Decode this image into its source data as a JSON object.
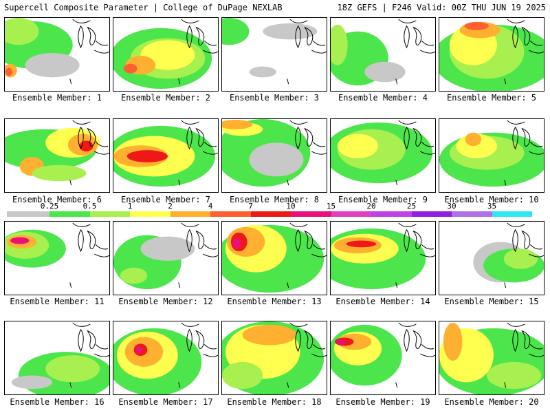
{
  "header": {
    "title": "Supercell Composite Parameter | College of DuPage NEXLAB",
    "run_info": "18Z GEFS | F246 Valid: 00Z THU JUN 19 2025"
  },
  "legend": {
    "labels": [
      "0.25",
      "0.5",
      "1",
      "2",
      "4",
      "7",
      "10",
      "15",
      "20",
      "25",
      "30",
      "35"
    ],
    "colors": [
      "#c8c8c8",
      "#4ce64c",
      "#a8f050",
      "#ffff50",
      "#ffb030",
      "#ff6030",
      "#ee1818",
      "#e8107a",
      "#e040c0",
      "#c040e8",
      "#9020e0",
      "#b070e8",
      "#30e8f0"
    ]
  },
  "members": [
    {
      "label": "Ensemble Member: 1"
    },
    {
      "label": "Ensemble Member: 2"
    },
    {
      "label": "Ensemble Member: 3"
    },
    {
      "label": "Ensemble Member: 4"
    },
    {
      "label": "Ensemble Member: 5"
    },
    {
      "label": "Ensemble Member: 6"
    },
    {
      "label": "Ensemble Member: 7"
    },
    {
      "label": "Ensemble Member: 8"
    },
    {
      "label": "Ensemble Member: 9"
    },
    {
      "label": "Ensemble Member: 10"
    },
    {
      "label": "Ensemble Member: 11"
    },
    {
      "label": "Ensemble Member: 12"
    },
    {
      "label": "Ensemble Member: 13"
    },
    {
      "label": "Ensemble Member: 14"
    },
    {
      "label": "Ensemble Member: 15"
    },
    {
      "label": "Ensemble Member: 16"
    },
    {
      "label": "Ensemble Member: 17"
    },
    {
      "label": "Ensemble Member: 18"
    },
    {
      "label": "Ensemble Member: 19"
    },
    {
      "label": "Ensemble Member: 20"
    }
  ]
}
